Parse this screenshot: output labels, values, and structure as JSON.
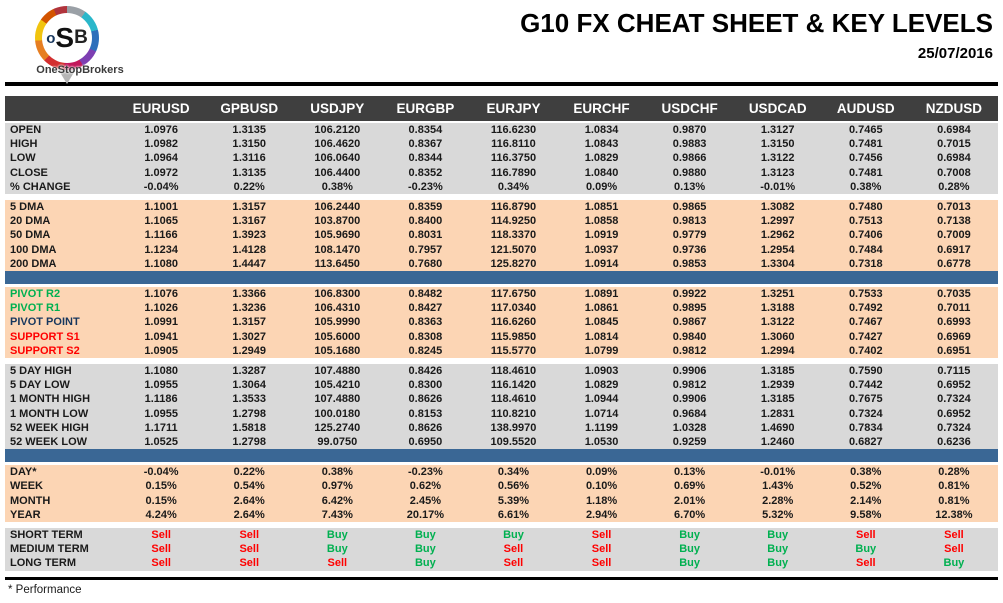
{
  "header": {
    "logo": {
      "o": "o",
      "s": "S",
      "b": "B",
      "brand": "OneStopBrokers"
    },
    "title": "G10 FX CHEAT SHEET & KEY LEVELS",
    "date": "25/07/2016"
  },
  "colors": {
    "header_bg": "#3F3F3F",
    "gray_row": "#D9D9D9",
    "peach_row": "#FCD5B4",
    "divider_blue": "#3A6795",
    "green": "#00B050",
    "red": "#FF0000",
    "navy": "#17375E"
  },
  "table": {
    "columns": [
      "EURUSD",
      "GPBUSD",
      "USDJPY",
      "EURGBP",
      "EURJPY",
      "EURCHF",
      "USDCHF",
      "USDCAD",
      "AUDUSD",
      "NZDUSD"
    ],
    "sections": [
      {
        "bg": "gray",
        "rows": [
          {
            "label": "OPEN",
            "values": [
              "1.0976",
              "1.3135",
              "106.2120",
              "0.8354",
              "116.6230",
              "1.0834",
              "0.9870",
              "1.3127",
              "0.7465",
              "0.6984"
            ]
          },
          {
            "label": "HIGH",
            "values": [
              "1.0982",
              "1.3150",
              "106.4620",
              "0.8367",
              "116.8110",
              "1.0843",
              "0.9883",
              "1.3150",
              "0.7481",
              "0.7015"
            ]
          },
          {
            "label": "LOW",
            "values": [
              "1.0964",
              "1.3116",
              "106.0640",
              "0.8344",
              "116.3750",
              "1.0829",
              "0.9866",
              "1.3122",
              "0.7456",
              "0.6984"
            ]
          },
          {
            "label": "CLOSE",
            "values": [
              "1.0972",
              "1.3135",
              "106.4400",
              "0.8352",
              "116.7890",
              "1.0840",
              "0.9880",
              "1.3123",
              "0.7481",
              "0.7008"
            ]
          },
          {
            "label": "% CHANGE",
            "values": [
              "-0.04%",
              "0.22%",
              "0.38%",
              "-0.23%",
              "0.34%",
              "0.09%",
              "0.13%",
              "-0.01%",
              "0.38%",
              "0.28%"
            ]
          }
        ]
      },
      {
        "bg": "peach",
        "gap_before": 6,
        "divider_after": true,
        "rows": [
          {
            "label": "5 DMA",
            "values": [
              "1.1001",
              "1.3157",
              "106.2440",
              "0.8359",
              "116.8790",
              "1.0851",
              "0.9865",
              "1.3082",
              "0.7480",
              "0.7013"
            ]
          },
          {
            "label": "20 DMA",
            "values": [
              "1.1065",
              "1.3167",
              "103.8700",
              "0.8400",
              "114.9250",
              "1.0858",
              "0.9813",
              "1.2997",
              "0.7513",
              "0.7138"
            ]
          },
          {
            "label": "50 DMA",
            "values": [
              "1.1166",
              "1.3923",
              "105.9690",
              "0.8031",
              "118.3370",
              "1.0919",
              "0.9779",
              "1.2962",
              "0.7406",
              "0.7009"
            ]
          },
          {
            "label": "100 DMA",
            "values": [
              "1.1234",
              "1.4128",
              "108.1470",
              "0.7957",
              "121.5070",
              "1.0937",
              "0.9736",
              "1.2954",
              "0.7484",
              "0.6917"
            ]
          },
          {
            "label": "200 DMA",
            "values": [
              "1.1080",
              "1.4447",
              "113.6450",
              "0.7680",
              "125.8270",
              "1.0914",
              "0.9853",
              "1.3304",
              "0.7318",
              "0.6778"
            ]
          }
        ]
      },
      {
        "bg": "peach",
        "gap_before": 3,
        "rows": [
          {
            "label": "PIVOT R2",
            "label_color": "green",
            "values": [
              "1.1076",
              "1.3366",
              "106.8300",
              "0.8482",
              "117.6750",
              "1.0891",
              "0.9922",
              "1.3251",
              "0.7533",
              "0.7035"
            ]
          },
          {
            "label": "PIVOT R1",
            "label_color": "green",
            "values": [
              "1.1026",
              "1.3236",
              "106.4310",
              "0.8427",
              "117.0340",
              "1.0861",
              "0.9895",
              "1.3188",
              "0.7492",
              "0.7011"
            ]
          },
          {
            "label": "PIVOT POINT",
            "label_color": "navy",
            "values": [
              "1.0991",
              "1.3157",
              "105.9990",
              "0.8363",
              "116.6260",
              "1.0845",
              "0.9867",
              "1.3122",
              "0.7467",
              "0.6993"
            ]
          },
          {
            "label": "SUPPORT S1",
            "label_color": "red",
            "values": [
              "1.0941",
              "1.3027",
              "105.6000",
              "0.8308",
              "115.9850",
              "1.0814",
              "0.9840",
              "1.3060",
              "0.7427",
              "0.6969"
            ]
          },
          {
            "label": "SUPPORT S2",
            "label_color": "red",
            "values": [
              "1.0905",
              "1.2949",
              "105.1680",
              "0.8245",
              "115.5770",
              "1.0799",
              "0.9812",
              "1.2994",
              "0.7402",
              "0.6951"
            ]
          }
        ]
      },
      {
        "bg": "gray",
        "gap_before": 6,
        "divider_after": true,
        "rows": [
          {
            "label": "5 DAY HIGH",
            "values": [
              "1.1080",
              "1.3287",
              "107.4880",
              "0.8426",
              "118.4610",
              "1.0903",
              "0.9906",
              "1.3185",
              "0.7590",
              "0.7115"
            ]
          },
          {
            "label": "5 DAY LOW",
            "values": [
              "1.0955",
              "1.3064",
              "105.4210",
              "0.8300",
              "116.1420",
              "1.0829",
              "0.9812",
              "1.2939",
              "0.7442",
              "0.6952"
            ]
          },
          {
            "label": "1 MONTH HIGH",
            "values": [
              "1.1186",
              "1.3533",
              "107.4880",
              "0.8626",
              "118.4610",
              "1.0944",
              "0.9906",
              "1.3185",
              "0.7675",
              "0.7324"
            ]
          },
          {
            "label": "1 MONTH LOW",
            "values": [
              "1.0955",
              "1.2798",
              "100.0180",
              "0.8153",
              "110.8210",
              "1.0714",
              "0.9684",
              "1.2831",
              "0.7324",
              "0.6952"
            ]
          },
          {
            "label": "52 WEEK HIGH",
            "values": [
              "1.1711",
              "1.5818",
              "125.2740",
              "0.8626",
              "138.9970",
              "1.1199",
              "1.0328",
              "1.4690",
              "0.7834",
              "0.7324"
            ]
          },
          {
            "label": "52 WEEK LOW",
            "values": [
              "1.0525",
              "1.2798",
              "99.0750",
              "0.6950",
              "109.5520",
              "1.0530",
              "0.9259",
              "1.2460",
              "0.6827",
              "0.6236"
            ]
          }
        ]
      },
      {
        "bg": "peach",
        "gap_before": 3,
        "rows": [
          {
            "label": "DAY*",
            "values": [
              "-0.04%",
              "0.22%",
              "0.38%",
              "-0.23%",
              "0.34%",
              "0.09%",
              "0.13%",
              "-0.01%",
              "0.38%",
              "0.28%"
            ]
          },
          {
            "label": "WEEK",
            "values": [
              "0.15%",
              "0.54%",
              "0.97%",
              "0.62%",
              "0.56%",
              "0.10%",
              "0.69%",
              "1.43%",
              "0.52%",
              "0.81%"
            ]
          },
          {
            "label": "MONTH",
            "values": [
              "0.15%",
              "2.64%",
              "6.42%",
              "2.45%",
              "5.39%",
              "1.18%",
              "2.01%",
              "2.28%",
              "2.14%",
              "0.81%"
            ]
          },
          {
            "label": "YEAR",
            "values": [
              "4.24%",
              "2.64%",
              "7.43%",
              "20.17%",
              "6.61%",
              "2.94%",
              "6.70%",
              "5.32%",
              "9.58%",
              "12.38%"
            ]
          }
        ]
      },
      {
        "bg": "gray",
        "gap_before": 6,
        "signals": true,
        "rows": [
          {
            "label": "SHORT TERM",
            "values": [
              "Sell",
              "Sell",
              "Buy",
              "Buy",
              "Buy",
              "Sell",
              "Buy",
              "Buy",
              "Sell",
              "Sell"
            ]
          },
          {
            "label": "MEDIUM TERM",
            "values": [
              "Sell",
              "Sell",
              "Buy",
              "Buy",
              "Sell",
              "Sell",
              "Buy",
              "Buy",
              "Buy",
              "Sell"
            ]
          },
          {
            "label": "LONG TERM",
            "values": [
              "Sell",
              "Sell",
              "Sell",
              "Buy",
              "Sell",
              "Sell",
              "Buy",
              "Buy",
              "Sell",
              "Buy"
            ]
          }
        ]
      }
    ]
  },
  "footer": {
    "note": "* Performance"
  }
}
